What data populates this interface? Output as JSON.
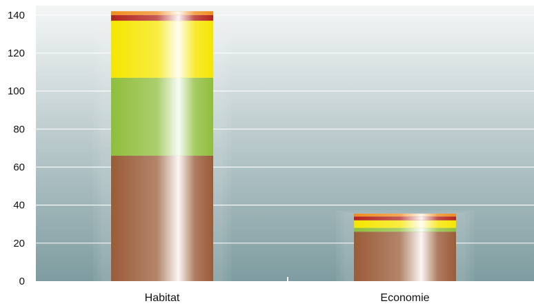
{
  "chart_data": {
    "type": "bar",
    "stacked": true,
    "categories": [
      "Habitat",
      "Economie"
    ],
    "series": [
      {
        "color": "#9a5c38",
        "values": [
          66,
          26
        ]
      },
      {
        "color": "#8fbe3c",
        "values": [
          41,
          2
        ]
      },
      {
        "color": "#f5e600",
        "values": [
          30,
          4
        ]
      },
      {
        "color": "#b3251d",
        "values": [
          3,
          2
        ]
      },
      {
        "color": "#f08c1e",
        "values": [
          2,
          1.5
        ]
      }
    ],
    "ylim": [
      0,
      145
    ],
    "yticks": [
      "0",
      "20",
      "40",
      "60",
      "80",
      "100",
      "120",
      "140"
    ],
    "grid": true,
    "background": {
      "top": "#f4f6f6",
      "bottom": "#7e9ca0"
    }
  }
}
